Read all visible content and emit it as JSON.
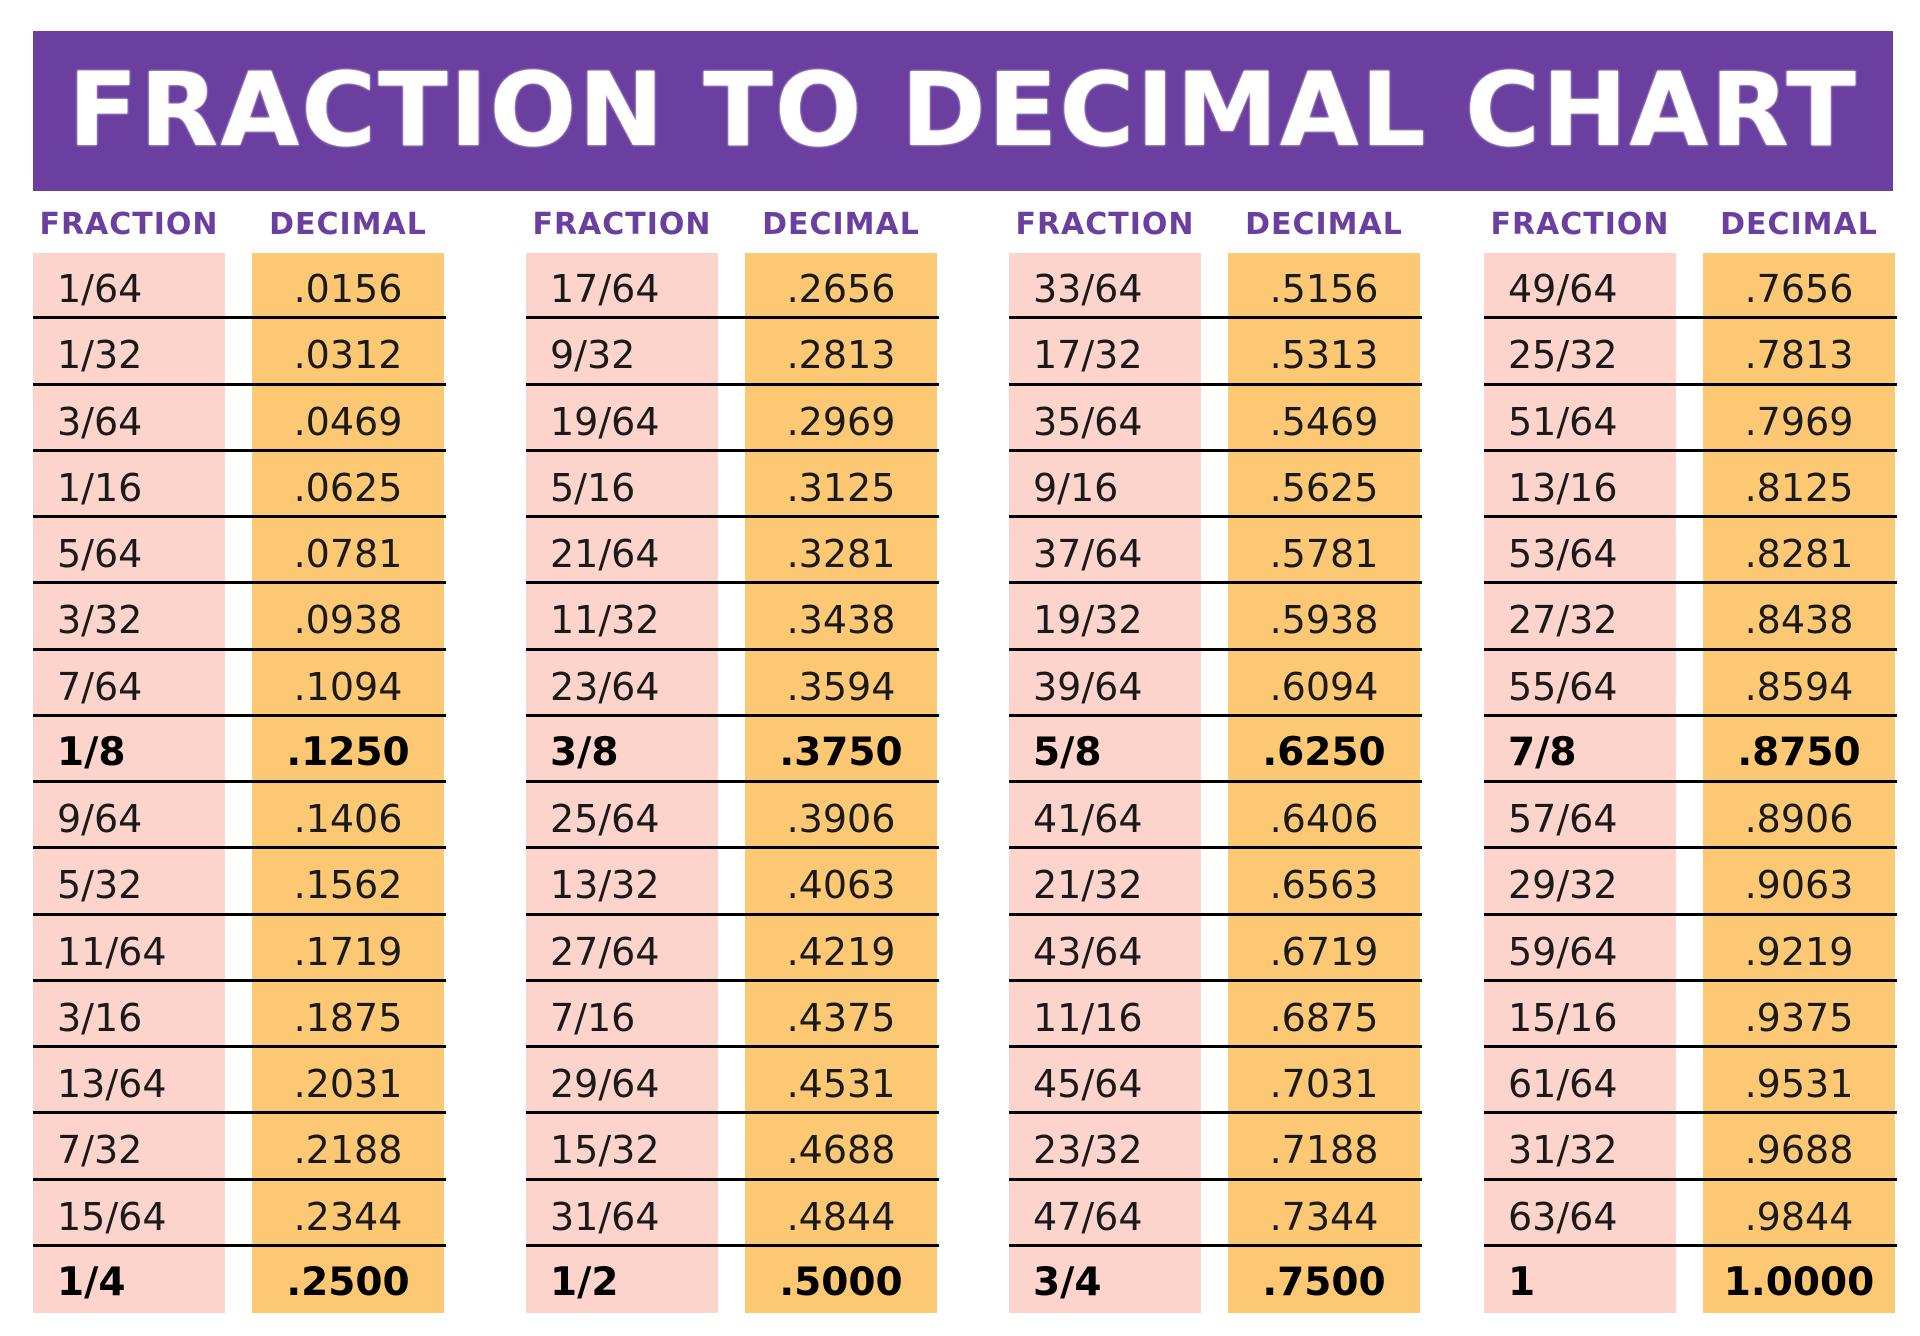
{
  "title": "FRACTION TO DECIMAL CHART",
  "headers": {
    "fraction": "FRACTION",
    "decimal": "DECIMAL"
  },
  "colors": {
    "banner": "#6b3fa0",
    "fraction_cell": "#fdd4cc",
    "decimal_cell": "#fdc873",
    "header_text": "#6b3fa0"
  },
  "groups": [
    {
      "rows": [
        {
          "fraction": "1/64",
          "decimal": ".0156",
          "bold": false
        },
        {
          "fraction": "1/32",
          "decimal": ".0312",
          "bold": false
        },
        {
          "fraction": "3/64",
          "decimal": ".0469",
          "bold": false
        },
        {
          "fraction": "1/16",
          "decimal": ".0625",
          "bold": false
        },
        {
          "fraction": "5/64",
          "decimal": ".0781",
          "bold": false
        },
        {
          "fraction": "3/32",
          "decimal": ".0938",
          "bold": false
        },
        {
          "fraction": "7/64",
          "decimal": ".1094",
          "bold": false
        },
        {
          "fraction": "1/8",
          "decimal": ".1250",
          "bold": true
        },
        {
          "fraction": "9/64",
          "decimal": ".1406",
          "bold": false
        },
        {
          "fraction": "5/32",
          "decimal": ".1562",
          "bold": false
        },
        {
          "fraction": "11/64",
          "decimal": ".1719",
          "bold": false
        },
        {
          "fraction": "3/16",
          "decimal": ".1875",
          "bold": false
        },
        {
          "fraction": "13/64",
          "decimal": ".2031",
          "bold": false
        },
        {
          "fraction": "7/32",
          "decimal": ".2188",
          "bold": false
        },
        {
          "fraction": "15/64",
          "decimal": ".2344",
          "bold": false
        },
        {
          "fraction": "1/4",
          "decimal": ".2500",
          "bold": true
        }
      ]
    },
    {
      "rows": [
        {
          "fraction": "17/64",
          "decimal": ".2656",
          "bold": false
        },
        {
          "fraction": "9/32",
          "decimal": ".2813",
          "bold": false
        },
        {
          "fraction": "19/64",
          "decimal": ".2969",
          "bold": false
        },
        {
          "fraction": "5/16",
          "decimal": ".3125",
          "bold": false
        },
        {
          "fraction": "21/64",
          "decimal": ".3281",
          "bold": false
        },
        {
          "fraction": "11/32",
          "decimal": ".3438",
          "bold": false
        },
        {
          "fraction": "23/64",
          "decimal": ".3594",
          "bold": false
        },
        {
          "fraction": "3/8",
          "decimal": ".3750",
          "bold": true
        },
        {
          "fraction": "25/64",
          "decimal": ".3906",
          "bold": false
        },
        {
          "fraction": "13/32",
          "decimal": ".4063",
          "bold": false
        },
        {
          "fraction": "27/64",
          "decimal": ".4219",
          "bold": false
        },
        {
          "fraction": "7/16",
          "decimal": ".4375",
          "bold": false
        },
        {
          "fraction": "29/64",
          "decimal": ".4531",
          "bold": false
        },
        {
          "fraction": "15/32",
          "decimal": ".4688",
          "bold": false
        },
        {
          "fraction": "31/64",
          "decimal": ".4844",
          "bold": false
        },
        {
          "fraction": "1/2",
          "decimal": ".5000",
          "bold": true
        }
      ]
    },
    {
      "rows": [
        {
          "fraction": "33/64",
          "decimal": ".5156",
          "bold": false
        },
        {
          "fraction": "17/32",
          "decimal": ".5313",
          "bold": false
        },
        {
          "fraction": "35/64",
          "decimal": ".5469",
          "bold": false
        },
        {
          "fraction": "9/16",
          "decimal": ".5625",
          "bold": false
        },
        {
          "fraction": "37/64",
          "decimal": ".5781",
          "bold": false
        },
        {
          "fraction": "19/32",
          "decimal": ".5938",
          "bold": false
        },
        {
          "fraction": "39/64",
          "decimal": ".6094",
          "bold": false
        },
        {
          "fraction": "5/8",
          "decimal": ".6250",
          "bold": true
        },
        {
          "fraction": "41/64",
          "decimal": ".6406",
          "bold": false
        },
        {
          "fraction": "21/32",
          "decimal": ".6563",
          "bold": false
        },
        {
          "fraction": "43/64",
          "decimal": ".6719",
          "bold": false
        },
        {
          "fraction": "11/16",
          "decimal": ".6875",
          "bold": false
        },
        {
          "fraction": "45/64",
          "decimal": ".7031",
          "bold": false
        },
        {
          "fraction": "23/32",
          "decimal": ".7188",
          "bold": false
        },
        {
          "fraction": "47/64",
          "decimal": ".7344",
          "bold": false
        },
        {
          "fraction": "3/4",
          "decimal": ".7500",
          "bold": true
        }
      ]
    },
    {
      "rows": [
        {
          "fraction": "49/64",
          "decimal": ".7656",
          "bold": false
        },
        {
          "fraction": "25/32",
          "decimal": ".7813",
          "bold": false
        },
        {
          "fraction": "51/64",
          "decimal": ".7969",
          "bold": false
        },
        {
          "fraction": "13/16",
          "decimal": ".8125",
          "bold": false
        },
        {
          "fraction": "53/64",
          "decimal": ".8281",
          "bold": false
        },
        {
          "fraction": "27/32",
          "decimal": ".8438",
          "bold": false
        },
        {
          "fraction": "55/64",
          "decimal": ".8594",
          "bold": false
        },
        {
          "fraction": "7/8",
          "decimal": ".8750",
          "bold": true
        },
        {
          "fraction": "57/64",
          "decimal": ".8906",
          "bold": false
        },
        {
          "fraction": "29/32",
          "decimal": ".9063",
          "bold": false
        },
        {
          "fraction": "59/64",
          "decimal": ".9219",
          "bold": false
        },
        {
          "fraction": "15/16",
          "decimal": ".9375",
          "bold": false
        },
        {
          "fraction": "61/64",
          "decimal": ".9531",
          "bold": false
        },
        {
          "fraction": "31/32",
          "decimal": ".9688",
          "bold": false
        },
        {
          "fraction": "63/64",
          "decimal": ".9844",
          "bold": false
        },
        {
          "fraction": "1",
          "decimal": "1.0000",
          "bold": true
        }
      ]
    }
  ]
}
